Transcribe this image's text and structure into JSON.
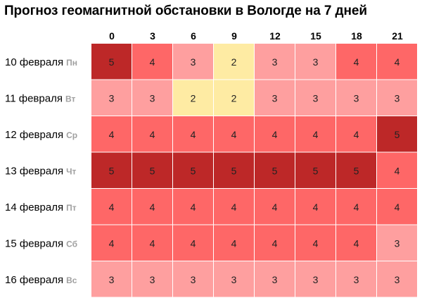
{
  "title": "Прогноз геомагнитной обстановки в Вологде на 7 дней",
  "colors": {
    "2": "#feeba3",
    "3": "#fe9f9f",
    "4": "#fe6767",
    "5": "#bd2828"
  },
  "chart_data": {
    "type": "heatmap",
    "title": "Прогноз геомагнитной обстановки в Вологде на 7 дней",
    "hours": [
      "0",
      "3",
      "6",
      "9",
      "12",
      "15",
      "18",
      "21"
    ],
    "rows": [
      {
        "date": "10 февраля",
        "day": "Пн",
        "values": [
          5,
          4,
          3,
          2,
          3,
          3,
          4,
          4
        ]
      },
      {
        "date": "11 февраля",
        "day": "Вт",
        "values": [
          3,
          3,
          2,
          2,
          3,
          3,
          3,
          3
        ]
      },
      {
        "date": "12 февраля",
        "day": "Ср",
        "values": [
          4,
          4,
          4,
          4,
          4,
          4,
          4,
          5
        ]
      },
      {
        "date": "13 февраля",
        "day": "Чт",
        "values": [
          5,
          5,
          5,
          5,
          5,
          5,
          5,
          4
        ]
      },
      {
        "date": "14 февраля",
        "day": "Пт",
        "values": [
          4,
          4,
          4,
          4,
          4,
          4,
          4,
          4
        ]
      },
      {
        "date": "15 февраля",
        "day": "Сб",
        "values": [
          4,
          4,
          4,
          4,
          4,
          4,
          4,
          3
        ]
      },
      {
        "date": "16 февраля",
        "day": "Вс",
        "values": [
          3,
          3,
          3,
          3,
          3,
          3,
          3,
          3
        ]
      }
    ]
  }
}
